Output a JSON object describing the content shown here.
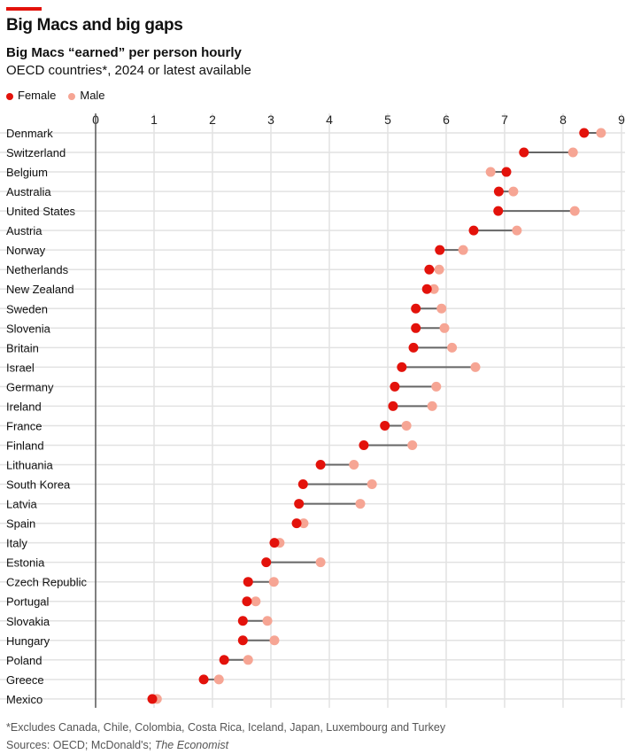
{
  "header": {
    "title": "Big Macs and big gaps",
    "subtitle": "Big Macs “earned” per person hourly",
    "subtitle2": "OECD countries*, 2024 or latest available"
  },
  "footer": {
    "note": "*Excludes Canada, Chile, Colombia, Costa Rica, Iceland, Japan, Luxembourg and Turkey",
    "sources_prefix": "Sources: OECD; McDonald's; ",
    "sources_italic": "The Economist"
  },
  "colors": {
    "female": "#e3120b",
    "male": "#f6a594",
    "line": "#666666",
    "accent": "#e3120b"
  },
  "chart_data": {
    "type": "dumbbell",
    "title": "Big Macs and big gaps",
    "xlabel": "",
    "ylabel": "",
    "xlim": [
      0,
      9
    ],
    "xticks": [
      "0",
      "1",
      "2",
      "3",
      "4",
      "5",
      "6",
      "7",
      "8",
      "9"
    ],
    "legend": {
      "placement": "top-left",
      "entries": [
        "Female",
        "Male"
      ]
    },
    "categories": [
      "Denmark",
      "Switzerland",
      "Belgium",
      "Australia",
      "United States",
      "Austria",
      "Norway",
      "Netherlands",
      "New Zealand",
      "Sweden",
      "Slovenia",
      "Britain",
      "Israel",
      "Germany",
      "Ireland",
      "France",
      "Finland",
      "Lithuania",
      "South Korea",
      "Latvia",
      "Spain",
      "Italy",
      "Estonia",
      "Czech Republic",
      "Portugal",
      "Slovakia",
      "Hungary",
      "Poland",
      "Greece",
      "Mexico"
    ],
    "series": [
      {
        "name": "Female",
        "values": [
          8.36,
          7.33,
          7.03,
          6.9,
          6.89,
          6.47,
          5.89,
          5.71,
          5.67,
          5.48,
          5.48,
          5.44,
          5.24,
          5.12,
          5.09,
          4.95,
          4.59,
          3.85,
          3.55,
          3.48,
          3.44,
          3.06,
          2.92,
          2.61,
          2.59,
          2.52,
          2.52,
          2.2,
          1.85,
          0.97
        ]
      },
      {
        "name": "Male",
        "values": [
          8.65,
          8.17,
          6.76,
          7.15,
          8.2,
          7.21,
          6.29,
          5.88,
          5.79,
          5.92,
          5.97,
          6.1,
          6.5,
          5.83,
          5.76,
          5.32,
          5.42,
          4.42,
          4.73,
          4.53,
          3.56,
          3.15,
          3.85,
          3.05,
          2.74,
          2.94,
          3.06,
          2.61,
          2.11,
          1.05
        ]
      }
    ]
  }
}
